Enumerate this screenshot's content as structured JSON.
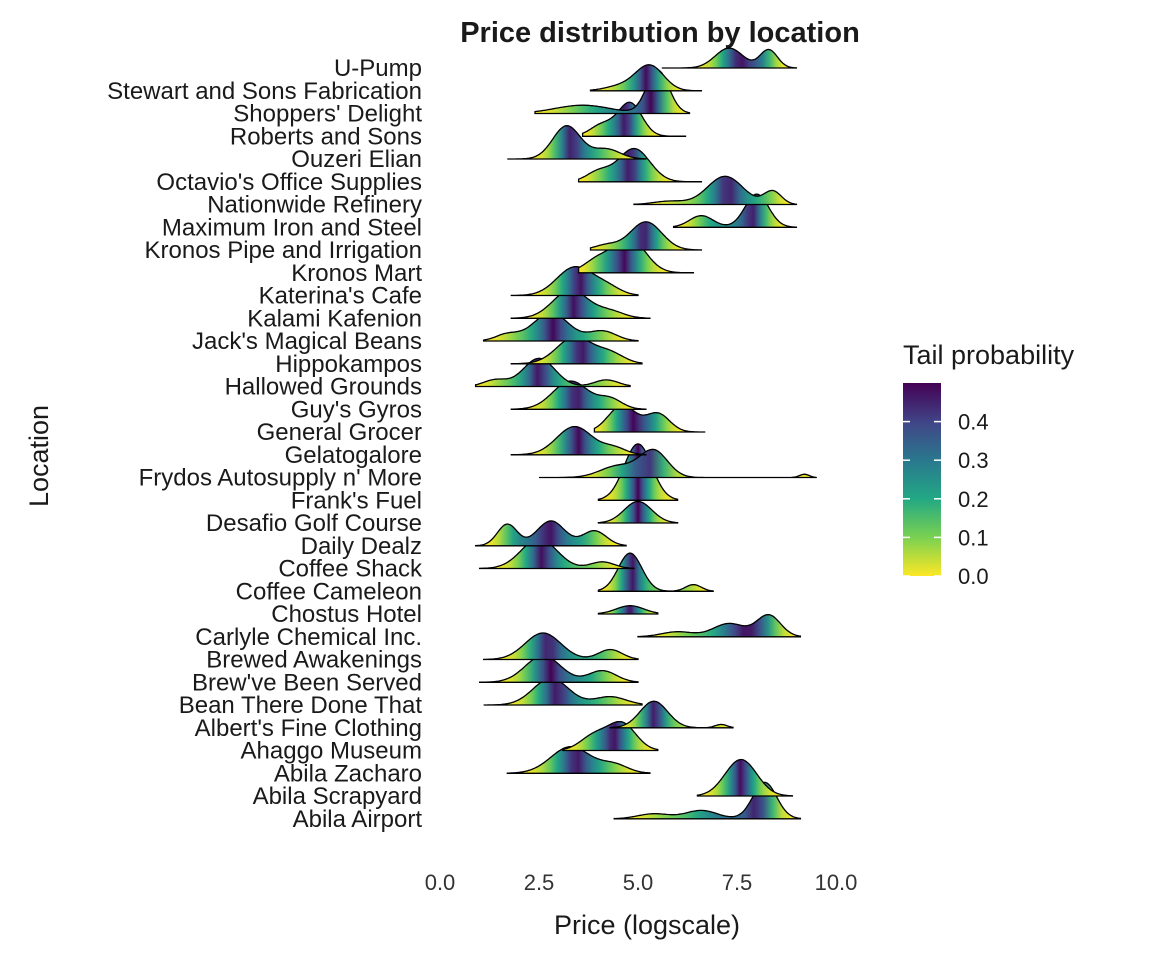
{
  "chart_data": {
    "type": "ridgeline",
    "title": "Price distribution by location",
    "xlabel": "Price (logscale)",
    "ylabel": "Location",
    "xlim": [
      0,
      10
    ],
    "x_ticks": [
      "0.0",
      "2.5",
      "5.0",
      "7.5",
      "10.0"
    ],
    "x_tick_values": [
      0,
      2.5,
      5,
      7.5,
      10
    ],
    "grid": false,
    "legend": {
      "title": "Tail probability",
      "position": "right",
      "ticks": [
        "0.4",
        "0.3",
        "0.2",
        "0.1",
        "0.0"
      ],
      "tick_values": [
        0.4,
        0.3,
        0.2,
        0.1,
        0.0
      ],
      "range": [
        0,
        0.5
      ],
      "colormap": "viridis (reversed)",
      "colors": [
        "#fde725",
        "#7ad151",
        "#22a884",
        "#2a788e",
        "#414487",
        "#440154"
      ]
    },
    "categories": [
      "U-Pump",
      "Stewart and Sons Fabrication",
      "Shoppers' Delight",
      "Roberts and Sons",
      "Ouzeri Elian",
      "Octavio's Office Supplies",
      "Nationwide Refinery",
      "Maximum Iron and Steel",
      "Kronos Pipe and Irrigation",
      "Kronos Mart",
      "Katerina's Cafe",
      "Kalami Kafenion",
      "Jack's Magical Beans",
      "Hippokampos",
      "Hallowed Grounds",
      "Guy's Gyros",
      "General Grocer",
      "Gelatogalore",
      "Frydos Autosupply n' More",
      "Frank's Fuel",
      "Desafio Golf Course",
      "Daily Dealz",
      "Coffee Shack",
      "Coffee Cameleon",
      "Chostus Hotel",
      "Carlyle Chemical Inc.",
      "Brewed Awakenings",
      "Brew've Been Served",
      "Bean There Done That",
      "Albert's Fine Clothing",
      "Ahaggo Museum",
      "Abila Zacharo",
      "Abila Scrapyard",
      "Abila Airport"
    ],
    "series": [
      {
        "name": "U-Pump",
        "range": [
          5.6,
          9.0
        ],
        "peaks": [
          [
            7.3,
            1.2,
            0.35
          ],
          [
            8.3,
            1.1,
            0.22
          ]
        ]
      },
      {
        "name": "Stewart and Sons Fabrication",
        "range": [
          3.8,
          6.6
        ],
        "peaks": [
          [
            5.3,
            1.5,
            0.35
          ],
          [
            4.6,
            0.3,
            0.4
          ]
        ]
      },
      {
        "name": "Shoppers' Delight",
        "range": [
          2.4,
          6.3
        ],
        "peaks": [
          [
            5.5,
            2.6,
            0.28
          ],
          [
            3.6,
            0.5,
            0.7
          ]
        ]
      },
      {
        "name": "Roberts and Sons",
        "range": [
          3.6,
          6.2
        ],
        "peaks": [
          [
            4.8,
            2.0,
            0.3
          ],
          [
            4.1,
            0.7,
            0.3
          ]
        ]
      },
      {
        "name": "Ouzeri Elian",
        "range": [
          1.7,
          5.2
        ],
        "peaks": [
          [
            3.2,
            2.0,
            0.35
          ],
          [
            4.2,
            0.6,
            0.35
          ]
        ]
      },
      {
        "name": "Octavio's Office Supplies",
        "range": [
          3.5,
          6.6
        ],
        "peaks": [
          [
            4.9,
            2.0,
            0.4
          ],
          [
            4.0,
            0.6,
            0.3
          ]
        ]
      },
      {
        "name": "Nationwide Refinery",
        "range": [
          4.9,
          9.0
        ],
        "peaks": [
          [
            7.2,
            1.7,
            0.45
          ],
          [
            8.4,
            0.8,
            0.22
          ],
          [
            5.8,
            0.2,
            0.4
          ]
        ]
      },
      {
        "name": "Maximum Iron and Steel",
        "range": [
          5.9,
          9.0
        ],
        "peaks": [
          [
            8.0,
            2.0,
            0.3
          ],
          [
            6.6,
            0.7,
            0.3
          ]
        ]
      },
      {
        "name": "Kronos Pipe and Irrigation",
        "range": [
          3.8,
          6.6
        ],
        "peaks": [
          [
            5.2,
            1.7,
            0.4
          ],
          [
            4.2,
            0.3,
            0.3
          ]
        ]
      },
      {
        "name": "Kronos Mart",
        "range": [
          3.5,
          6.4
        ],
        "peaks": [
          [
            4.8,
            2.0,
            0.4
          ],
          [
            4.0,
            0.8,
            0.35
          ]
        ]
      },
      {
        "name": "Katerina's Cafe",
        "range": [
          1.8,
          5.0
        ],
        "peaks": [
          [
            3.4,
            1.7,
            0.45
          ],
          [
            4.2,
            0.5,
            0.35
          ]
        ]
      },
      {
        "name": "Kalami Kafenion",
        "range": [
          1.8,
          5.3
        ],
        "peaks": [
          [
            3.3,
            1.7,
            0.45
          ],
          [
            4.3,
            0.4,
            0.35
          ]
        ]
      },
      {
        "name": "Jack's Magical Beans",
        "range": [
          1.1,
          5.0
        ],
        "peaks": [
          [
            2.8,
            1.7,
            0.45
          ],
          [
            4.1,
            0.6,
            0.35
          ],
          [
            1.7,
            0.4,
            0.3
          ]
        ]
      },
      {
        "name": "Hippokampos",
        "range": [
          1.8,
          5.1
        ],
        "peaks": [
          [
            3.4,
            1.6,
            0.45
          ],
          [
            4.3,
            0.6,
            0.35
          ]
        ]
      },
      {
        "name": "Hallowed Grounds",
        "range": [
          0.9,
          4.8
        ],
        "peaks": [
          [
            2.5,
            1.7,
            0.4
          ],
          [
            4.2,
            0.4,
            0.3
          ],
          [
            1.4,
            0.4,
            0.3
          ]
        ]
      },
      {
        "name": "Guy's Gyros",
        "range": [
          1.8,
          5.2
        ],
        "peaks": [
          [
            3.3,
            1.7,
            0.45
          ],
          [
            4.3,
            0.6,
            0.3
          ]
        ]
      },
      {
        "name": "General Grocer",
        "range": [
          3.9,
          6.7
        ],
        "peaks": [
          [
            4.6,
            1.6,
            0.35
          ],
          [
            5.5,
            1.1,
            0.3
          ]
        ]
      },
      {
        "name": "Gelatogalore",
        "range": [
          1.8,
          5.2
        ],
        "peaks": [
          [
            3.4,
            1.7,
            0.45
          ],
          [
            4.4,
            0.4,
            0.3
          ]
        ]
      },
      {
        "name": "Frydos Autosupply n' More",
        "range": [
          2.5,
          9.5
        ],
        "peaks": [
          [
            5.4,
            1.6,
            0.35
          ],
          [
            4.5,
            0.7,
            0.45
          ],
          [
            9.2,
            0.2,
            0.12
          ]
        ]
      },
      {
        "name": "Frank's Fuel",
        "range": [
          4.0,
          6.0
        ],
        "peaks": [
          [
            5.0,
            3.4,
            0.35
          ]
        ]
      },
      {
        "name": "Desafio Golf Course",
        "range": [
          4.0,
          6.0
        ],
        "peaks": [
          [
            5.0,
            1.3,
            0.35
          ]
        ]
      },
      {
        "name": "Daily Dealz",
        "range": [
          0.9,
          4.7
        ],
        "peaks": [
          [
            1.7,
            1.3,
            0.25
          ],
          [
            2.8,
            1.5,
            0.35
          ],
          [
            3.9,
            0.9,
            0.3
          ]
        ]
      },
      {
        "name": "Coffee Shack",
        "range": [
          1.0,
          4.9
        ],
        "peaks": [
          [
            2.5,
            1.8,
            0.45
          ],
          [
            4.1,
            0.4,
            0.3
          ]
        ]
      },
      {
        "name": "Coffee Cameleon",
        "range": [
          4.0,
          6.9
        ],
        "peaks": [
          [
            4.8,
            2.3,
            0.3
          ],
          [
            6.4,
            0.4,
            0.2
          ]
        ]
      },
      {
        "name": "Chostus Hotel",
        "range": [
          4.0,
          5.5
        ],
        "peaks": [
          [
            4.8,
            0.5,
            0.35
          ]
        ]
      },
      {
        "name": "Carlyle Chemical Inc.",
        "range": [
          5.0,
          9.1
        ],
        "peaks": [
          [
            8.3,
            1.3,
            0.3
          ],
          [
            7.3,
            0.8,
            0.4
          ],
          [
            6.0,
            0.3,
            0.4
          ]
        ]
      },
      {
        "name": "Brewed Awakenings",
        "range": [
          1.1,
          5.0
        ],
        "peaks": [
          [
            2.6,
            1.6,
            0.45
          ],
          [
            4.3,
            0.6,
            0.3
          ]
        ]
      },
      {
        "name": "Brew've Been Served",
        "range": [
          1.0,
          5.0
        ],
        "peaks": [
          [
            2.6,
            1.6,
            0.45
          ],
          [
            4.1,
            0.7,
            0.35
          ]
        ]
      },
      {
        "name": "Bean There Done That",
        "range": [
          1.1,
          5.1
        ],
        "peaks": [
          [
            2.8,
            1.6,
            0.45
          ],
          [
            4.3,
            0.5,
            0.4
          ]
        ]
      },
      {
        "name": "Albert's Fine Clothing",
        "range": [
          4.3,
          7.4
        ],
        "peaks": [
          [
            5.4,
            1.6,
            0.35
          ],
          [
            7.1,
            0.2,
            0.15
          ]
        ]
      },
      {
        "name": "Ahaggo Museum",
        "range": [
          3.1,
          5.5
        ],
        "peaks": [
          [
            4.6,
            1.6,
            0.35
          ],
          [
            3.9,
            0.9,
            0.35
          ]
        ]
      },
      {
        "name": "Abila Zacharo",
        "range": [
          1.7,
          5.3
        ],
        "peaks": [
          [
            3.3,
            1.6,
            0.5
          ],
          [
            4.4,
            0.5,
            0.35
          ]
        ]
      },
      {
        "name": "Abila Scrapyard",
        "range": [
          6.5,
          8.9
        ],
        "peaks": [
          [
            7.6,
            2.2,
            0.4
          ]
        ]
      },
      {
        "name": "Abila Airport",
        "range": [
          4.4,
          9.1
        ],
        "peaks": [
          [
            8.2,
            2.2,
            0.3
          ],
          [
            6.6,
            0.5,
            0.4
          ],
          [
            5.4,
            0.3,
            0.4
          ]
        ]
      }
    ]
  }
}
